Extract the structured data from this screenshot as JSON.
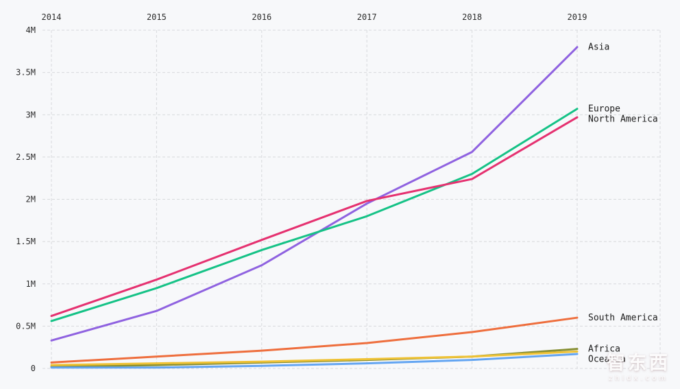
{
  "chart_data": {
    "type": "line",
    "x": [
      2014,
      2015,
      2016,
      2017,
      2018,
      2019
    ],
    "x_labels": [
      "2014",
      "2015",
      "2016",
      "2017",
      "2018",
      "2019"
    ],
    "y_ticks": [
      0,
      0.5,
      1,
      1.5,
      2,
      2.5,
      3,
      3.5,
      4
    ],
    "y_tick_labels": [
      "0",
      "0.5M",
      "1M",
      "1.5M",
      "2M",
      "2.5M",
      "3M",
      "3.5M",
      "4M"
    ],
    "ylim": [
      0,
      4
    ],
    "unit": "M",
    "grid": "dashed",
    "x_axis_position": "top",
    "legend_position": "right-end-labels",
    "series": [
      {
        "name": "Asia",
        "color": "#8f62e0",
        "values": [
          0.33,
          0.68,
          1.22,
          1.95,
          2.56,
          3.8
        ]
      },
      {
        "name": "Europe",
        "color": "#15c286",
        "values": [
          0.56,
          0.95,
          1.4,
          1.8,
          2.3,
          3.07
        ]
      },
      {
        "name": "North America",
        "color": "#e53170",
        "values": [
          0.62,
          1.05,
          1.52,
          1.98,
          2.24,
          2.97
        ]
      },
      {
        "name": "South America",
        "color": "#ee6e3d",
        "values": [
          0.07,
          0.14,
          0.21,
          0.3,
          0.43,
          0.6
        ]
      },
      {
        "name": "Africa",
        "color": "#878f33",
        "values": [
          0.02,
          0.04,
          0.07,
          0.1,
          0.14,
          0.23
        ]
      },
      {
        "name": "Oceania",
        "color": "#efc235",
        "values": [
          0.04,
          0.06,
          0.08,
          0.11,
          0.14,
          0.2
        ]
      },
      {
        "name": "",
        "color": "#63a5f2",
        "values": [
          0.01,
          0.01,
          0.03,
          0.06,
          0.1,
          0.17
        ]
      }
    ]
  },
  "watermark": {
    "title": "智东西",
    "subtitle": "zhidx.com"
  },
  "colors": {
    "background": "#f7f8fa",
    "grid": "#d7d9dc",
    "text": "#2d2d2d"
  }
}
